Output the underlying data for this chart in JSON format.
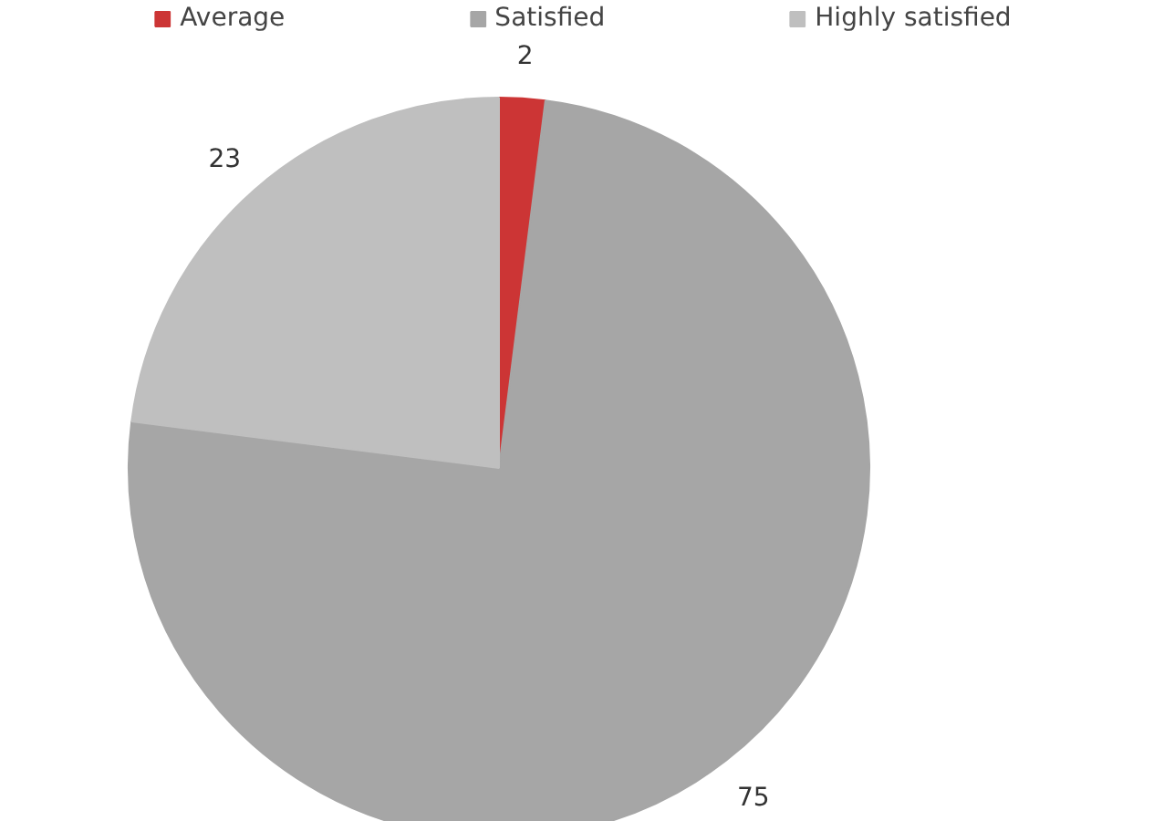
{
  "chart_data": {
    "type": "pie",
    "categories": [
      "Average",
      "Satisfied",
      "Highly satisfied"
    ],
    "values": [
      2,
      75,
      23
    ],
    "colors": [
      "#cc3535",
      "#a6a6a6",
      "#bfbfbf"
    ],
    "data_labels": true,
    "legend": "top"
  }
}
